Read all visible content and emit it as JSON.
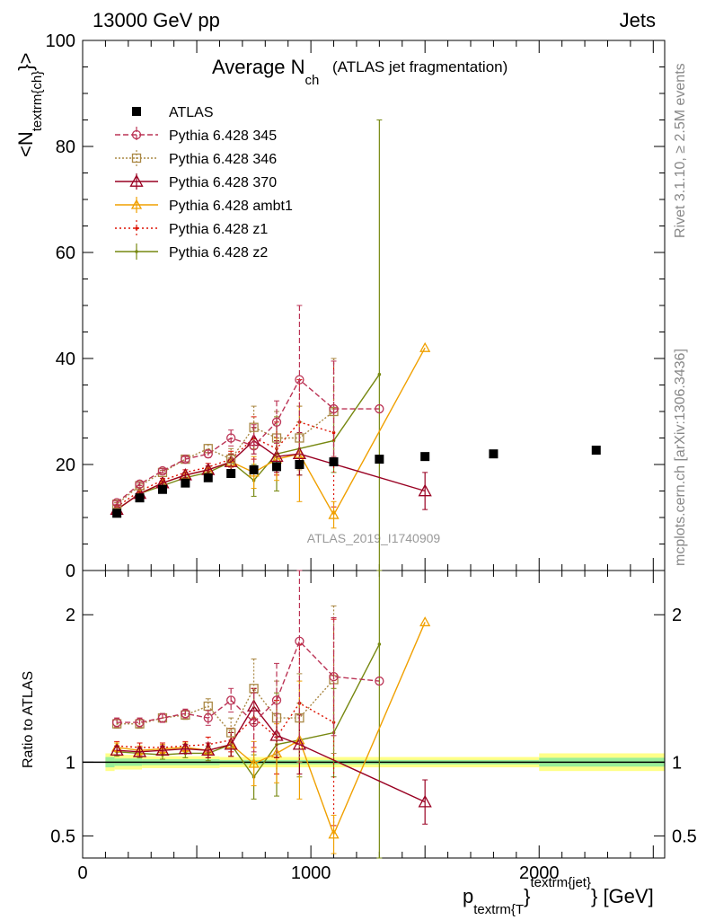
{
  "header": {
    "left": "13000 GeV pp",
    "right": "Jets"
  },
  "title": {
    "main": "Average N",
    "sub": "ch",
    "paren": "(ATLAS jet fragmentation)"
  },
  "side_text": {
    "top": "Rivet 3.1.10, ≥ 2.5M events",
    "bottom": "mcplots.cern.ch [arXiv:1306.3436]"
  },
  "watermark": "ATLAS_2019_I1740909",
  "ylabel_top": "<N",
  "ylabel_top_sub": "textrm{ch}",
  "ylabel_top_end": "}>",
  "ylabel_bottom": "Ratio to ATLAS",
  "xlabel": {
    "p": "p",
    "sub": "textrm{T",
    "close": "}",
    "sup": "textrm{jet}",
    "unit": "} [GeV]"
  },
  "colors": {
    "data": "#000000",
    "p345": "#bb3355",
    "p346": "#aa8844",
    "p370": "#990022",
    "ambt1": "#f0a000",
    "z1": "#dd1100",
    "z2": "#778811"
  },
  "chart_data": [
    {
      "type": "line",
      "xlim": [
        0,
        2550
      ],
      "ylim": [
        0,
        100
      ],
      "xticks": [
        0,
        1000,
        2000
      ],
      "yticks": [
        0,
        20,
        40,
        60,
        80,
        100
      ],
      "series": [
        {
          "name": "ATLAS",
          "style": "data",
          "x": [
            150,
            250,
            350,
            450,
            550,
            650,
            750,
            850,
            950,
            1100,
            1300,
            1500,
            1800,
            2250
          ],
          "y": [
            10.8,
            13.7,
            15.3,
            16.5,
            17.5,
            18.3,
            19.0,
            19.6,
            20.0,
            20.5,
            21.0,
            21.5,
            22.0,
            22.7
          ]
        },
        {
          "name": "Pythia 6.428 345",
          "style": "p345",
          "x": [
            150,
            250,
            350,
            450,
            550,
            650,
            750,
            850,
            950,
            1100,
            1300
          ],
          "y": [
            12.8,
            16.3,
            18.8,
            21.0,
            22.0,
            25.0,
            23.5,
            28.0,
            36.0,
            30.5,
            30.5
          ],
          "err": [
            0.3,
            0.3,
            0.4,
            0.5,
            0.7,
            1.5,
            4,
            4,
            14,
            9,
            0
          ]
        },
        {
          "name": "Pythia 6.428 346",
          "style": "p346",
          "x": [
            150,
            250,
            350,
            450,
            550,
            650,
            750,
            850,
            950,
            1100
          ],
          "y": [
            12.5,
            16.0,
            18.5,
            21.0,
            23.0,
            21.0,
            27.0,
            25.0,
            25.0,
            30.0
          ],
          "err": [
            0.3,
            0.3,
            0.4,
            0.5,
            0.8,
            2,
            4,
            5,
            6,
            10
          ]
        },
        {
          "name": "Pythia 6.428 370",
          "style": "p370",
          "x": [
            150,
            250,
            350,
            450,
            550,
            650,
            750,
            850,
            950,
            1500
          ],
          "y": [
            11.5,
            14.5,
            16.5,
            18.0,
            19.0,
            20.5,
            24.5,
            21.5,
            22.0,
            15.0
          ],
          "err": [
            0.3,
            0.3,
            0.4,
            0.5,
            0.7,
            1.5,
            2.5,
            3,
            4,
            3.5
          ]
        },
        {
          "name": "Pythia 6.428 ambt1",
          "style": "ambt1",
          "x": [
            150,
            250,
            350,
            450,
            550,
            650,
            750,
            850,
            950,
            1100,
            1500
          ],
          "y": [
            11.5,
            14.5,
            16.5,
            18.0,
            19.0,
            20.5,
            18.5,
            21.0,
            22.0,
            10.5,
            42.0
          ],
          "err": [
            0.3,
            0.3,
            0.4,
            0.5,
            0.7,
            1.5,
            3,
            4,
            9,
            2.5,
            0
          ]
        },
        {
          "name": "Pythia 6.428 z1",
          "style": "z1",
          "x": [
            150,
            250,
            350,
            450,
            550,
            650,
            750,
            850,
            950,
            1100
          ],
          "y": [
            12.0,
            15.0,
            17.0,
            18.5,
            19.5,
            21.0,
            25.0,
            23.0,
            28.0,
            26.0
          ],
          "err": [
            0.3,
            0.3,
            0.4,
            0.5,
            0.7,
            1.5,
            4,
            5,
            8,
            14
          ]
        },
        {
          "name": "Pythia 6.428 z2",
          "style": "z2",
          "x": [
            150,
            250,
            350,
            450,
            550,
            650,
            750,
            850,
            950,
            1100,
            1300
          ],
          "y": [
            11.5,
            14.5,
            16.0,
            17.5,
            18.5,
            20.5,
            17.0,
            22.0,
            23.0,
            24.5,
            37.0
          ],
          "err": [
            0.3,
            0.3,
            0.4,
            0.5,
            0.7,
            1.5,
            3,
            7,
            5,
            6,
            48
          ]
        }
      ]
    },
    {
      "type": "line",
      "xlim": [
        0,
        2550
      ],
      "ylim": [
        0.35,
        2.3
      ],
      "yticks": [
        0.5,
        1,
        2
      ],
      "ylabel": "Ratio to ATLAS",
      "series": [
        {
          "name": "Pythia 6.428 345",
          "style": "p345",
          "x": [
            150,
            250,
            350,
            450,
            550,
            650,
            750,
            850,
            950,
            1100,
            1300
          ],
          "y": [
            1.27,
            1.27,
            1.3,
            1.33,
            1.3,
            1.42,
            1.27,
            1.42,
            1.82,
            1.58,
            1.55
          ],
          "err": [
            0.03,
            0.03,
            0.03,
            0.03,
            0.05,
            0.08,
            0.2,
            0.25,
            0.7,
            0.4,
            0
          ]
        },
        {
          "name": "Pythia 6.428 346",
          "style": "p346",
          "x": [
            150,
            250,
            350,
            450,
            550,
            650,
            750,
            850,
            950,
            1100
          ],
          "y": [
            1.26,
            1.26,
            1.3,
            1.32,
            1.38,
            1.2,
            1.5,
            1.3,
            1.3,
            1.56
          ],
          "err": [
            0.03,
            0.03,
            0.03,
            0.03,
            0.05,
            0.1,
            0.2,
            0.25,
            0.3,
            0.5
          ]
        },
        {
          "name": "Pythia 6.428 370",
          "style": "p370",
          "x": [
            150,
            250,
            350,
            450,
            550,
            650,
            750,
            850,
            950,
            1500
          ],
          "y": [
            1.08,
            1.07,
            1.08,
            1.09,
            1.08,
            1.12,
            1.38,
            1.18,
            1.12,
            0.73
          ],
          "err": [
            0.03,
            0.03,
            0.03,
            0.03,
            0.05,
            0.08,
            0.12,
            0.15,
            0.2,
            0.15
          ]
        },
        {
          "name": "Pythia 6.428 ambt1",
          "style": "ambt1",
          "x": [
            150,
            250,
            350,
            450,
            550,
            650,
            750,
            850,
            950,
            1100,
            1500
          ],
          "y": [
            1.1,
            1.08,
            1.09,
            1.1,
            1.08,
            1.12,
            0.99,
            1.06,
            1.15,
            0.51,
            1.95
          ],
          "err": [
            0.03,
            0.03,
            0.03,
            0.03,
            0.05,
            0.08,
            0.15,
            0.2,
            0.4,
            0.13,
            0
          ]
        },
        {
          "name": "Pythia 6.428 z1",
          "style": "z1",
          "x": [
            150,
            250,
            350,
            450,
            550,
            650,
            750,
            850,
            950,
            1100
          ],
          "y": [
            1.11,
            1.1,
            1.1,
            1.11,
            1.12,
            1.15,
            1.3,
            1.17,
            1.4,
            1.27
          ],
          "err": [
            0.03,
            0.03,
            0.03,
            0.03,
            0.05,
            0.08,
            0.2,
            0.25,
            0.4,
            0.7
          ]
        },
        {
          "name": "Pythia 6.428 z2",
          "style": "z2",
          "x": [
            150,
            250,
            350,
            450,
            550,
            650,
            750,
            850,
            950,
            1100,
            1300
          ],
          "y": [
            1.07,
            1.06,
            1.05,
            1.06,
            1.06,
            1.12,
            0.9,
            1.12,
            1.15,
            1.2,
            1.8
          ],
          "err": [
            0.03,
            0.03,
            0.03,
            0.03,
            0.05,
            0.08,
            0.15,
            0.35,
            0.25,
            0.3,
            2.3
          ]
        }
      ]
    }
  ]
}
